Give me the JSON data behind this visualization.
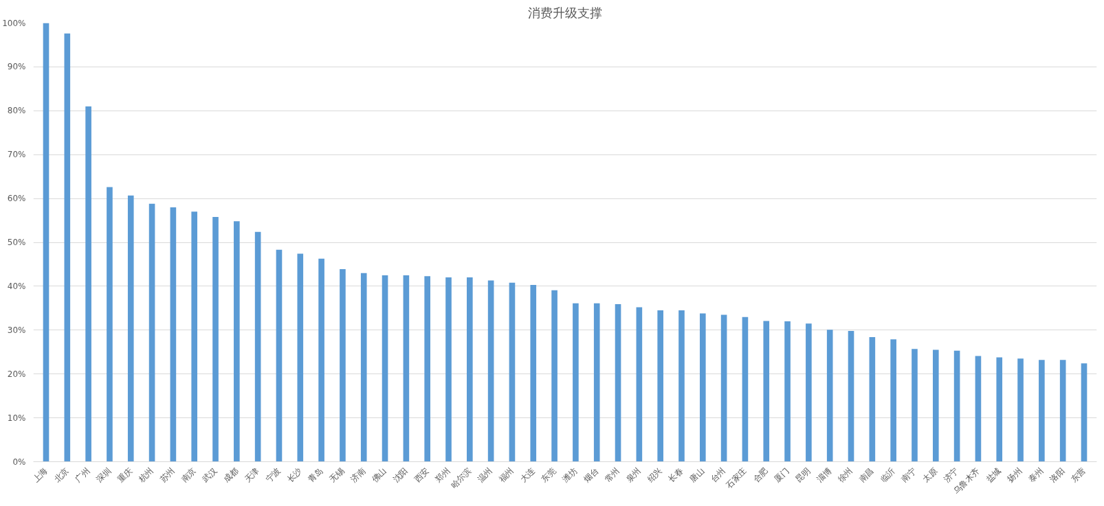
{
  "chart_data": {
    "type": "bar",
    "title": "消费升级支撑",
    "categories": [
      "上海",
      "北京",
      "广州",
      "深圳",
      "重庆",
      "杭州",
      "苏州",
      "南京",
      "武汉",
      "成都",
      "天津",
      "宁波",
      "长沙",
      "青岛",
      "无锡",
      "济南",
      "佛山",
      "沈阳",
      "西安",
      "郑州",
      "哈尔滨",
      "温州",
      "福州",
      "大连",
      "东莞",
      "潍坊",
      "烟台",
      "常州",
      "泉州",
      "绍兴",
      "长春",
      "唐山",
      "台州",
      "石家庄",
      "合肥",
      "厦门",
      "昆明",
      "淄博",
      "徐州",
      "南昌",
      "临沂",
      "南宁",
      "太原",
      "济宁",
      "乌鲁木齐",
      "盐城",
      "扬州",
      "泰州",
      "洛阳",
      "东营"
    ],
    "values": [
      100,
      97.6,
      81.0,
      62.6,
      60.7,
      58.8,
      58.0,
      57.0,
      55.8,
      54.8,
      52.4,
      48.3,
      47.4,
      46.3,
      43.9,
      43.0,
      42.5,
      42.5,
      42.3,
      42.0,
      42.0,
      41.3,
      40.8,
      40.3,
      39.1,
      36.1,
      36.1,
      35.9,
      35.2,
      34.5,
      34.5,
      33.8,
      33.5,
      33.0,
      32.1,
      32.0,
      31.5,
      30.1,
      29.8,
      28.4,
      27.9,
      25.7,
      25.5,
      25.3,
      24.1,
      23.8,
      23.5,
      23.2,
      23.2,
      22.4
    ],
    "color": "#5b9bd5",
    "ylim": [
      0,
      100
    ],
    "yticks": [
      {
        "value": 0,
        "label": "0%"
      },
      {
        "value": 10,
        "label": "10%"
      },
      {
        "value": 20,
        "label": "20%"
      },
      {
        "value": 30,
        "label": "30%"
      },
      {
        "value": 40,
        "label": "40%"
      },
      {
        "value": 50,
        "label": "50%"
      },
      {
        "value": 60,
        "label": "60%"
      },
      {
        "value": 70,
        "label": "70%"
      },
      {
        "value": 80,
        "label": "80%"
      },
      {
        "value": 90,
        "label": "90%"
      },
      {
        "value": 100,
        "label": "100%"
      }
    ],
    "grid": "y"
  }
}
